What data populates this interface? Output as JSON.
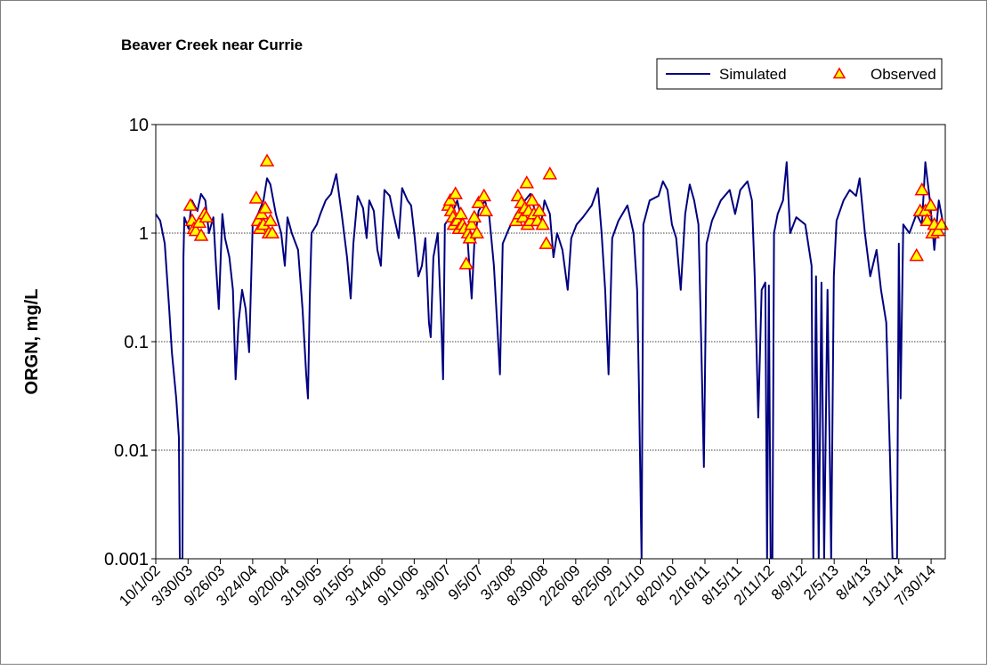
{
  "chart_data": {
    "type": "line",
    "title": "Beaver Creek near Currie",
    "y_label": "ORGN, mg/L",
    "yscale": "log",
    "ylim": [
      0.001,
      10
    ],
    "yticks": [
      0.001,
      0.01,
      0.1,
      1,
      10
    ],
    "grid": true,
    "legend": "upper right",
    "xlim": [
      "2002-10-01",
      "2014-10-17"
    ],
    "xticks": [
      {
        "value": "2002-10-01",
        "label": "10/1/02"
      },
      {
        "value": "2003-03-30",
        "label": "3/30/03"
      },
      {
        "value": "2003-09-26",
        "label": "9/26/03"
      },
      {
        "value": "2004-03-24",
        "label": "3/24/04"
      },
      {
        "value": "2004-09-20",
        "label": "9/20/04"
      },
      {
        "value": "2005-03-19",
        "label": "3/19/05"
      },
      {
        "value": "2005-09-15",
        "label": "9/15/05"
      },
      {
        "value": "2006-03-14",
        "label": "3/14/06"
      },
      {
        "value": "2006-09-10",
        "label": "9/10/06"
      },
      {
        "value": "2007-03-09",
        "label": "3/9/07"
      },
      {
        "value": "2007-09-05",
        "label": "9/5/07"
      },
      {
        "value": "2008-03-03",
        "label": "3/3/08"
      },
      {
        "value": "2008-08-30",
        "label": "8/30/08"
      },
      {
        "value": "2009-02-26",
        "label": "2/26/09"
      },
      {
        "value": "2009-08-25",
        "label": "8/25/09"
      },
      {
        "value": "2010-02-21",
        "label": "2/21/10"
      },
      {
        "value": "2010-08-20",
        "label": "8/20/10"
      },
      {
        "value": "2011-02-16",
        "label": "2/16/11"
      },
      {
        "value": "2011-08-15",
        "label": "8/15/11"
      },
      {
        "value": "2012-02-11",
        "label": "2/11/12"
      },
      {
        "value": "2012-08-09",
        "label": "8/9/12"
      },
      {
        "value": "2013-02-05",
        "label": "2/5/13"
      },
      {
        "value": "2013-08-04",
        "label": "8/4/13"
      },
      {
        "value": "2014-01-31",
        "label": "1/31/14"
      },
      {
        "value": "2014-07-30",
        "label": "7/30/14"
      }
    ],
    "series": [
      {
        "name": "Simulated",
        "color": "#000080",
        "marker": "none",
        "x": [
          "2002-10-01",
          "2002-10-26",
          "2002-11-20",
          "2002-12-15",
          "2002-12-30",
          "2003-01-23",
          "2003-02-07",
          "2003-02-12",
          "2003-02-27",
          "2003-03-04",
          "2003-03-09",
          "2003-04-02",
          "2003-04-21",
          "2003-05-21",
          "2003-06-10",
          "2003-07-04",
          "2003-07-24",
          "2003-08-18",
          "2003-09-02",
          "2003-09-17",
          "2003-10-07",
          "2003-10-22",
          "2003-11-15",
          "2003-12-05",
          "2003-12-20",
          "2004-01-05",
          "2004-01-25",
          "2004-02-14",
          "2004-03-04",
          "2004-03-24",
          "2004-04-23",
          "2004-05-23",
          "2004-06-12",
          "2004-07-01",
          "2004-07-31",
          "2004-08-30",
          "2004-09-19",
          "2004-10-04",
          "2004-10-28",
          "2004-12-02",
          "2004-12-27",
          "2005-01-16",
          "2005-01-26",
          "2005-02-05",
          "2005-02-15",
          "2005-03-16",
          "2005-04-05",
          "2005-05-05",
          "2005-06-04",
          "2005-07-03",
          "2005-08-02",
          "2005-09-01",
          "2005-09-21",
          "2005-10-06",
          "2005-10-30",
          "2005-11-29",
          "2005-12-19",
          "2006-01-03",
          "2006-01-28",
          "2006-02-17",
          "2006-03-08",
          "2006-03-28",
          "2006-04-27",
          "2006-05-17",
          "2006-06-16",
          "2006-07-05",
          "2006-08-04",
          "2006-08-24",
          "2006-09-13",
          "2006-10-03",
          "2006-10-23",
          "2006-11-11",
          "2006-12-01",
          "2006-12-11",
          "2006-12-26",
          "2007-01-19",
          "2007-02-08",
          "2007-02-18",
          "2007-02-28",
          "2007-04-09",
          "2007-05-08",
          "2007-06-07",
          "2007-07-02",
          "2007-07-27",
          "2007-08-11",
          "2007-09-04",
          "2007-10-09",
          "2007-11-03",
          "2007-11-28",
          "2007-12-22",
          "2008-01-01",
          "2008-01-16",
          "2008-02-20",
          "2008-03-31",
          "2008-05-19",
          "2008-06-18",
          "2008-07-18",
          "2008-08-17",
          "2008-09-05",
          "2008-10-05",
          "2008-10-25",
          "2008-11-14",
          "2008-12-14",
          "2009-01-12",
          "2009-02-01",
          "2009-03-03",
          "2009-04-07",
          "2009-05-26",
          "2009-06-30",
          "2009-07-20",
          "2009-08-09",
          "2009-08-28",
          "2009-09-17",
          "2009-10-22",
          "2009-12-11",
          "2010-01-14",
          "2010-02-03",
          "2010-02-13",
          "2010-02-28",
          "2010-03-10",
          "2010-04-14",
          "2010-06-02",
          "2010-06-27",
          "2010-07-22",
          "2010-08-16",
          "2010-09-09",
          "2010-10-04",
          "2010-10-29",
          "2010-11-23",
          "2010-12-18",
          "2011-01-11",
          "2011-01-26",
          "2011-02-10",
          "2011-02-25",
          "2011-03-27",
          "2011-05-15",
          "2011-07-04",
          "2011-08-03",
          "2011-09-01",
          "2011-10-11",
          "2011-11-05",
          "2011-11-20",
          "2011-12-10",
          "2011-12-29",
          "2012-01-18",
          "2012-01-28",
          "2012-02-07",
          "2012-02-17",
          "2012-02-27",
          "2012-03-07",
          "2012-03-27",
          "2012-04-26",
          "2012-05-16",
          "2012-06-05",
          "2012-07-09",
          "2012-08-28",
          "2012-10-02",
          "2012-10-12",
          "2012-10-27",
          "2012-11-11",
          "2012-11-26",
          "2012-12-11",
          "2012-12-30",
          "2013-01-19",
          "2013-02-03",
          "2013-02-18",
          "2013-03-29",
          "2013-05-03",
          "2013-06-07",
          "2013-06-27",
          "2013-07-26",
          "2013-08-25",
          "2013-09-29",
          "2013-10-24",
          "2013-11-22",
          "2013-12-12",
          "2013-12-27",
          "2014-01-21",
          "2014-01-31",
          "2014-02-10",
          "2014-02-25",
          "2014-03-31",
          "2014-05-10",
          "2014-06-09",
          "2014-06-28",
          "2014-07-23",
          "2014-08-17",
          "2014-09-11",
          "2014-10-06"
        ],
        "values": [
          1.5,
          1.3,
          0.8,
          0.2,
          0.08,
          0.03,
          0.013,
          0.001,
          0.001,
          0.6,
          1.4,
          1.1,
          2.0,
          1.6,
          2.3,
          2.0,
          1.0,
          1.4,
          0.5,
          0.2,
          1.5,
          0.9,
          0.6,
          0.3,
          0.045,
          0.15,
          0.3,
          0.2,
          0.08,
          1.2,
          1.5,
          2.0,
          3.2,
          2.8,
          1.5,
          1.0,
          0.5,
          1.4,
          1.0,
          0.7,
          0.2,
          0.05,
          0.03,
          0.25,
          1.0,
          1.2,
          1.5,
          2.0,
          2.3,
          3.5,
          1.5,
          0.6,
          0.25,
          0.8,
          2.2,
          1.7,
          0.9,
          2.0,
          1.6,
          0.7,
          0.5,
          2.5,
          2.2,
          1.5,
          0.9,
          2.6,
          2.0,
          1.8,
          0.9,
          0.4,
          0.5,
          0.9,
          0.15,
          0.11,
          0.6,
          1.0,
          0.15,
          0.045,
          1.2,
          1.5,
          2.0,
          1.2,
          1.0,
          0.25,
          0.8,
          1.6,
          2.0,
          1.4,
          0.5,
          0.1,
          0.05,
          0.8,
          1.1,
          1.5,
          2.0,
          2.3,
          1.5,
          1.2,
          2.0,
          1.5,
          0.6,
          1.0,
          0.7,
          0.3,
          0.9,
          1.2,
          1.4,
          1.8,
          2.6,
          1.0,
          0.3,
          0.05,
          0.9,
          1.3,
          1.8,
          1.0,
          0.3,
          0.04,
          0.001,
          1.2,
          2.0,
          2.2,
          3.0,
          2.5,
          1.2,
          0.9,
          0.3,
          1.5,
          2.8,
          2.0,
          1.2,
          0.1,
          0.007,
          0.8,
          1.3,
          2.0,
          2.5,
          1.5,
          2.5,
          3.0,
          2.0,
          0.4,
          0.02,
          0.3,
          0.35,
          0.001,
          0.33,
          0.001,
          0.001,
          1.0,
          1.5,
          2.0,
          4.5,
          1.0,
          1.4,
          1.2,
          0.5,
          0.001,
          0.4,
          0.001,
          0.35,
          0.001,
          0.3,
          0.001,
          0.4,
          1.3,
          2.0,
          2.5,
          2.2,
          3.2,
          1.0,
          0.4,
          0.7,
          0.3,
          0.15,
          0.01,
          0.001,
          0.001,
          0.8,
          0.03,
          1.2,
          1.0,
          1.5,
          1.2,
          4.5,
          2.0,
          0.7,
          2.0,
          1.2
        ]
      },
      {
        "name": "Observed",
        "color": "#ffff00",
        "edge_color": "#ff0000",
        "marker": "triangle",
        "x": [
          "2003-04-12",
          "2003-04-22",
          "2003-05-02",
          "2003-05-12",
          "2003-06-01",
          "2003-06-11",
          "2003-06-30",
          "2003-07-10",
          "2004-04-13",
          "2004-04-23",
          "2004-05-03",
          "2004-05-13",
          "2004-05-23",
          "2004-06-02",
          "2004-06-12",
          "2004-06-22",
          "2004-07-01",
          "2004-07-11",
          "2007-03-20",
          "2007-03-30",
          "2007-04-04",
          "2007-04-14",
          "2007-04-19",
          "2007-04-28",
          "2007-05-08",
          "2007-05-18",
          "2007-05-28",
          "2007-06-07",
          "2007-06-17",
          "2007-06-27",
          "2007-07-07",
          "2007-07-17",
          "2007-07-27",
          "2007-08-11",
          "2007-08-25",
          "2007-09-04",
          "2007-10-04",
          "2007-10-14",
          "2008-03-31",
          "2008-04-10",
          "2008-04-20",
          "2008-04-29",
          "2008-05-09",
          "2008-05-19",
          "2008-05-29",
          "2008-06-03",
          "2008-06-08",
          "2008-06-18",
          "2008-06-28",
          "2008-07-08",
          "2008-07-28",
          "2008-08-07",
          "2008-08-26",
          "2008-09-15",
          "2008-10-05",
          "2014-05-10",
          "2014-05-30",
          "2014-06-09",
          "2014-06-28",
          "2014-07-08",
          "2014-07-28",
          "2014-08-07",
          "2014-08-17",
          "2014-09-06",
          "2014-09-26"
        ],
        "values": [
          1.8,
          1.3,
          1.1,
          1.05,
          1.25,
          0.95,
          1.5,
          1.4,
          2.1,
          1.3,
          1.1,
          1.5,
          1.2,
          1.7,
          4.6,
          1.0,
          1.3,
          1.0,
          1.8,
          2.0,
          1.6,
          1.4,
          1.2,
          2.3,
          1.3,
          1.1,
          1.5,
          1.2,
          1.1,
          0.52,
          1.0,
          0.9,
          1.2,
          1.4,
          1.0,
          1.9,
          2.2,
          1.6,
          1.3,
          2.2,
          1.5,
          1.9,
          1.4,
          1.7,
          2.9,
          1.2,
          1.6,
          1.3,
          2.0,
          1.5,
          1.3,
          1.6,
          1.2,
          0.8,
          3.5,
          0.62,
          1.6,
          2.5,
          1.6,
          1.3,
          1.8,
          1.0,
          1.2,
          1.05,
          1.2
        ]
      }
    ]
  }
}
